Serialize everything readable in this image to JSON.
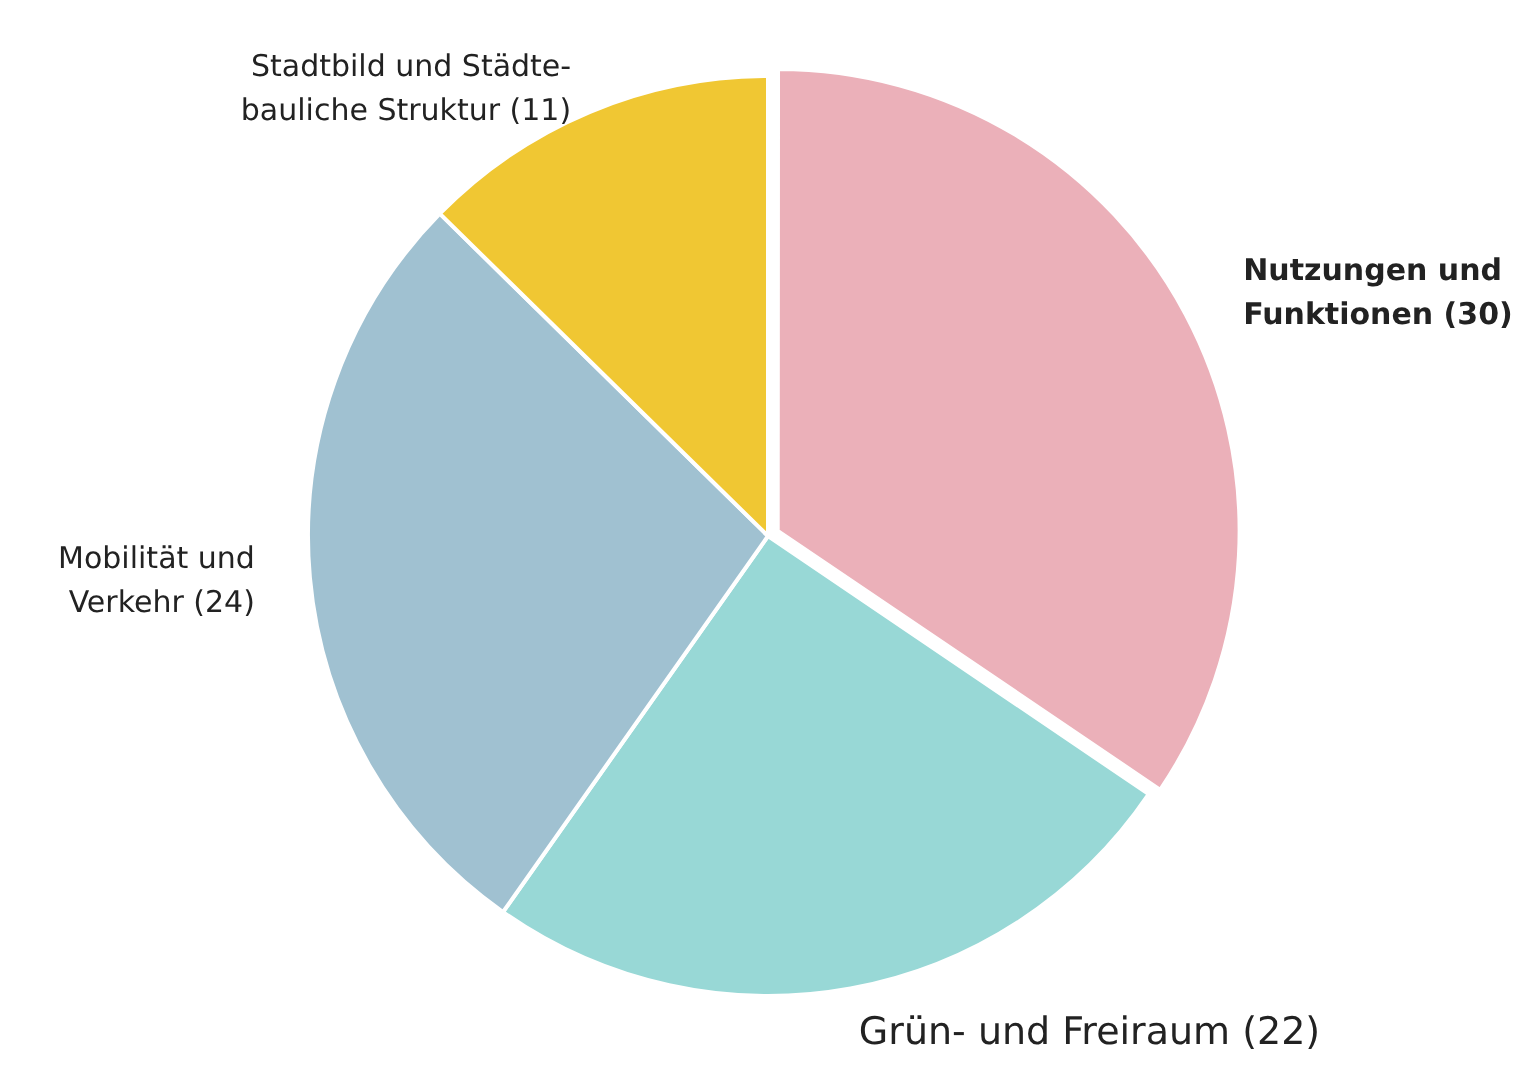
{
  "chart_data": {
    "type": "pie",
    "categories": [
      "Nutzungen und\nFunktionen",
      "Grün- und Freiraum",
      "Mobilität und\nVerkehr",
      "Stadtbild und Städte-\nbauliche Struktur"
    ],
    "values": [
      30,
      22,
      24,
      11
    ],
    "colors": [
      "#ebb0b9",
      "#98d8d6",
      "#a0c1d1",
      "#f0c733"
    ],
    "value_labels": [
      "(30)",
      "(22)",
      "(24)",
      "(11)"
    ],
    "legend": false
  }
}
